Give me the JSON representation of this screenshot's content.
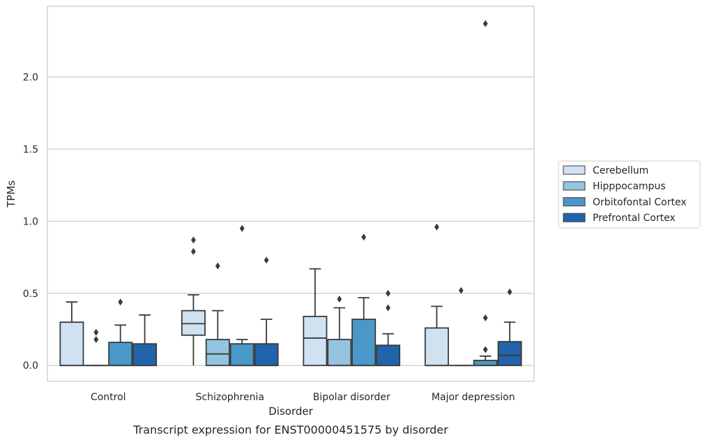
{
  "chart_data": {
    "type": "box",
    "title": "",
    "caption": "Transcript expression for ENST00000451575 by disorder",
    "xlabel": "Disorder",
    "ylabel": "TPMs",
    "ylim": [
      -0.11,
      2.49
    ],
    "yticks": [
      0.0,
      0.5,
      1.0,
      1.5,
      2.0
    ],
    "ytick_labels": [
      "0.0",
      "0.5",
      "1.0",
      "1.5",
      "2.0"
    ],
    "grid": "horizontal",
    "legend_position": "right",
    "categories": [
      "Control",
      "Schizophrenia",
      "Bipolar disorder",
      "Major depression"
    ],
    "series": [
      {
        "name": "Cerebellum",
        "color": "#d0e1f2",
        "boxes": [
          {
            "min": 0.0,
            "q1": 0.0,
            "median": 0.0,
            "q3": 0.3,
            "max": 0.44,
            "outliers": []
          },
          {
            "min": 0.0,
            "q1": 0.21,
            "median": 0.29,
            "q3": 0.38,
            "max": 0.49,
            "outliers": [
              0.79,
              0.87
            ]
          },
          {
            "min": 0.0,
            "q1": 0.0,
            "median": 0.19,
            "q3": 0.34,
            "max": 0.67,
            "outliers": []
          },
          {
            "min": 0.0,
            "q1": 0.0,
            "median": 0.0,
            "q3": 0.26,
            "max": 0.41,
            "outliers": [
              0.96
            ]
          }
        ]
      },
      {
        "name": "Hipppocampus",
        "color": "#94c4df",
        "boxes": [
          {
            "min": 0.0,
            "q1": 0.0,
            "median": 0.0,
            "q3": 0.0,
            "max": 0.0,
            "outliers": [
              0.18,
              0.23
            ]
          },
          {
            "min": 0.0,
            "q1": 0.0,
            "median": 0.08,
            "q3": 0.18,
            "max": 0.38,
            "outliers": [
              0.69
            ]
          },
          {
            "min": 0.0,
            "q1": 0.0,
            "median": 0.0,
            "q3": 0.18,
            "max": 0.4,
            "outliers": [
              0.46
            ]
          },
          {
            "min": 0.0,
            "q1": 0.0,
            "median": 0.0,
            "q3": 0.0,
            "max": 0.0,
            "outliers": [
              0.52
            ]
          }
        ]
      },
      {
        "name": "Orbitofontal Cortex",
        "color": "#4a98c9",
        "boxes": [
          {
            "min": 0.0,
            "q1": 0.0,
            "median": 0.0,
            "q3": 0.16,
            "max": 0.28,
            "outliers": [
              0.44
            ]
          },
          {
            "min": 0.0,
            "q1": 0.0,
            "median": 0.0,
            "q3": 0.15,
            "max": 0.18,
            "outliers": [
              0.95
            ]
          },
          {
            "min": 0.0,
            "q1": 0.0,
            "median": 0.0,
            "q3": 0.32,
            "max": 0.47,
            "outliers": [
              0.89
            ]
          },
          {
            "min": 0.0,
            "q1": 0.0,
            "median": 0.0,
            "q3": 0.035,
            "max": 0.065,
            "outliers": [
              0.11,
              0.33,
              2.37
            ]
          }
        ]
      },
      {
        "name": "Prefrontal Cortex",
        "color": "#2164ab",
        "boxes": [
          {
            "min": 0.0,
            "q1": 0.0,
            "median": 0.0,
            "q3": 0.15,
            "max": 0.35,
            "outliers": []
          },
          {
            "min": 0.0,
            "q1": 0.0,
            "median": 0.0,
            "q3": 0.15,
            "max": 0.32,
            "outliers": [
              0.73
            ]
          },
          {
            "min": 0.0,
            "q1": 0.0,
            "median": 0.0,
            "q3": 0.14,
            "max": 0.22,
            "outliers": [
              0.4,
              0.5
            ]
          },
          {
            "min": 0.0,
            "q1": 0.0,
            "median": 0.07,
            "q3": 0.165,
            "max": 0.3,
            "outliers": [
              0.51
            ]
          }
        ]
      }
    ]
  }
}
